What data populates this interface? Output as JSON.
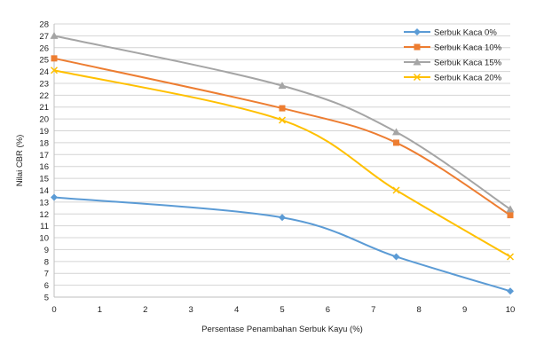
{
  "chart_data": {
    "type": "line",
    "title": "",
    "xlabel": "Persentase Penambahan Serbuk Kayu (%)",
    "ylabel": "Nilai CBR (%)",
    "xlim": [
      0,
      10
    ],
    "ylim": [
      5,
      28
    ],
    "x_ticks": [
      "0",
      "1",
      "2",
      "3",
      "4",
      "5",
      "6",
      "7",
      "8",
      "9",
      "10"
    ],
    "y_ticks": [
      "5",
      "6",
      "7",
      "8",
      "9",
      "10",
      "11",
      "12",
      "13",
      "14",
      "15",
      "16",
      "17",
      "18",
      "19",
      "20",
      "21",
      "22",
      "23",
      "24",
      "25",
      "26",
      "27",
      "28"
    ],
    "grid": true,
    "legend_position": "top-right",
    "series": [
      {
        "name": "Serbuk Kaca 0%",
        "color": "#5b9bd5",
        "marker": "diamond",
        "points": [
          [
            0,
            13.4
          ],
          [
            5,
            11.7
          ],
          [
            7.5,
            8.4
          ],
          [
            10,
            5.5
          ]
        ]
      },
      {
        "name": "Serbuk Kaca 10%",
        "color": "#ed7d31",
        "marker": "square",
        "points": [
          [
            0,
            25.1
          ],
          [
            5,
            20.9
          ],
          [
            7.5,
            18.0
          ],
          [
            10,
            11.9
          ]
        ]
      },
      {
        "name": "Serbuk Kaca 15%",
        "color": "#a5a5a5",
        "marker": "triangle",
        "points": [
          [
            0,
            27.0
          ],
          [
            5,
            22.8
          ],
          [
            7.5,
            18.9
          ],
          [
            10,
            12.4
          ]
        ]
      },
      {
        "name": "Serbuk Kaca 20%",
        "color": "#ffc000",
        "marker": "x",
        "points": [
          [
            0,
            24.1
          ],
          [
            5,
            19.9
          ],
          [
            7.5,
            14.0
          ],
          [
            10,
            8.4
          ]
        ]
      }
    ]
  }
}
